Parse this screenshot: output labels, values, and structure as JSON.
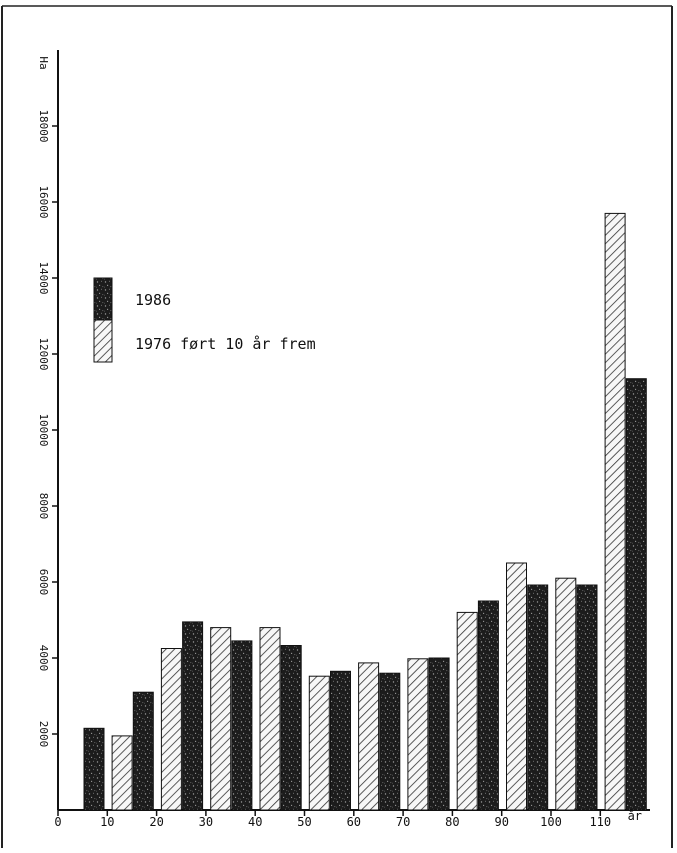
{
  "chart_data": {
    "type": "bar",
    "ylabel": "Ha",
    "xlabel": "år",
    "ylim": [
      0,
      20000
    ],
    "xlim": [
      0,
      120
    ],
    "grid": false,
    "legend_placement": "upper-left",
    "x_ticks": [
      "0",
      "10",
      "20",
      "30",
      "40",
      "50",
      "60",
      "70",
      "80",
      "90",
      "100",
      "110",
      "år"
    ],
    "y_ticks": [
      "2000",
      "4000",
      "6000",
      "8000",
      "10000",
      "12000",
      "14000",
      "16000",
      "18000",
      "Ha"
    ],
    "categories": [
      "0-10",
      "10-20",
      "20-30",
      "30-40",
      "40-50",
      "50-60",
      "60-70",
      "70-80",
      "80-90",
      "90-100",
      "100-110",
      "110+"
    ],
    "series": [
      {
        "name": "1986",
        "pattern": "dark-speckled",
        "values": [
          2150,
          3100,
          4950,
          4450,
          4330,
          3650,
          3600,
          4000,
          5500,
          5920,
          5920,
          11350
        ]
      },
      {
        "name": "1976 ført 10 år frem",
        "pattern": "diagonal-hatch",
        "values": [
          null,
          1950,
          4250,
          4800,
          4800,
          3520,
          3870,
          3980,
          5200,
          6500,
          6100,
          15700
        ]
      }
    ],
    "bar_groups": [
      {
        "x_hatch": null,
        "x_dark": 7.3
      },
      {
        "x_hatch": 13.0,
        "x_dark": 17.3
      },
      {
        "x_hatch": 23.0,
        "x_dark": 27.3
      },
      {
        "x_hatch": 33.0,
        "x_dark": 37.3
      },
      {
        "x_hatch": 43.0,
        "x_dark": 47.3
      },
      {
        "x_hatch": 53.0,
        "x_dark": 57.3
      },
      {
        "x_hatch": 63.0,
        "x_dark": 67.3
      },
      {
        "x_hatch": 73.0,
        "x_dark": 77.3
      },
      {
        "x_hatch": 83.0,
        "x_dark": 87.3
      },
      {
        "x_hatch": 93.0,
        "x_dark": 97.3
      },
      {
        "x_hatch": 103.0,
        "x_dark": 107.3
      },
      {
        "x_hatch": 113.0,
        "x_dark": 117.3
      }
    ],
    "colors": {
      "dark_fill": "#1c1c1c",
      "hatch_line": "#333333",
      "light_fill": "#f7f7f7",
      "outline": "#111111"
    }
  }
}
